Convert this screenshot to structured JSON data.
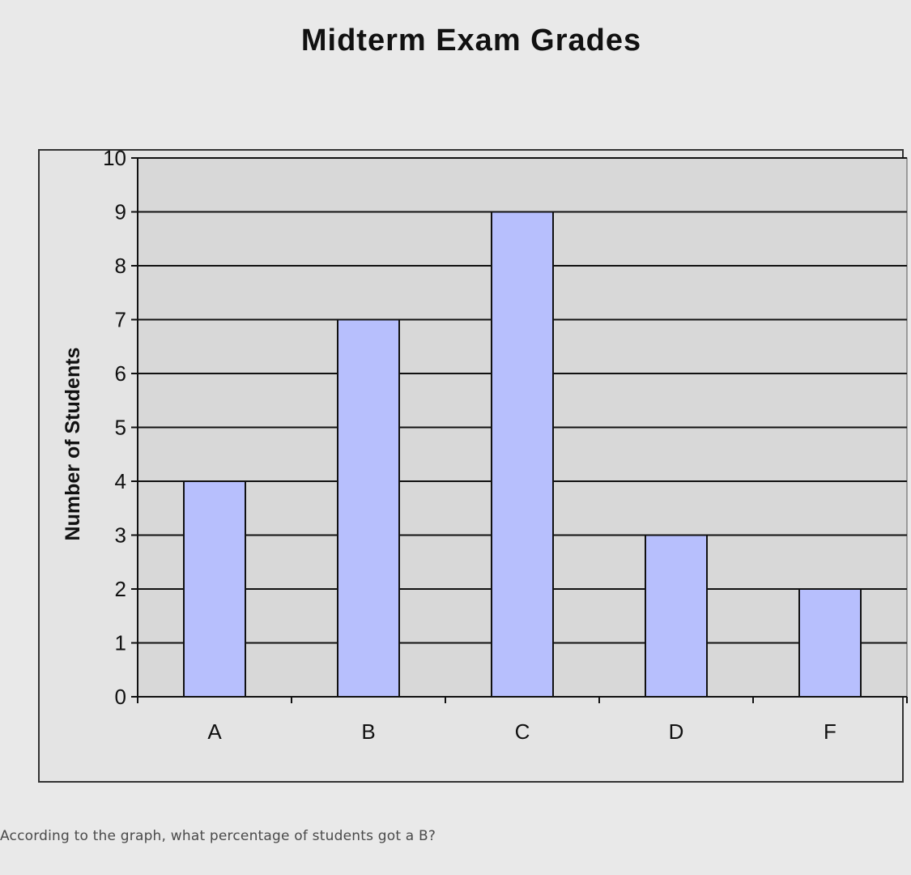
{
  "question": "According to the graph, what percentage of students got a B?",
  "chart_data": {
    "type": "bar",
    "title": "Midterm Exam Grades",
    "xlabel": "",
    "ylabel": "Number of Students",
    "categories": [
      "A",
      "B",
      "C",
      "D",
      "F"
    ],
    "values": [
      4,
      7,
      9,
      3,
      2
    ],
    "ylim": [
      0,
      10
    ],
    "yticks": [
      0,
      1,
      2,
      3,
      4,
      5,
      6,
      7,
      8,
      9,
      10
    ],
    "grid": true,
    "legend": "none",
    "colors": {
      "bar": "#b7bffd",
      "plot_bg": "#d8d8d8",
      "axis": "#111111",
      "frame": "#333333"
    }
  }
}
